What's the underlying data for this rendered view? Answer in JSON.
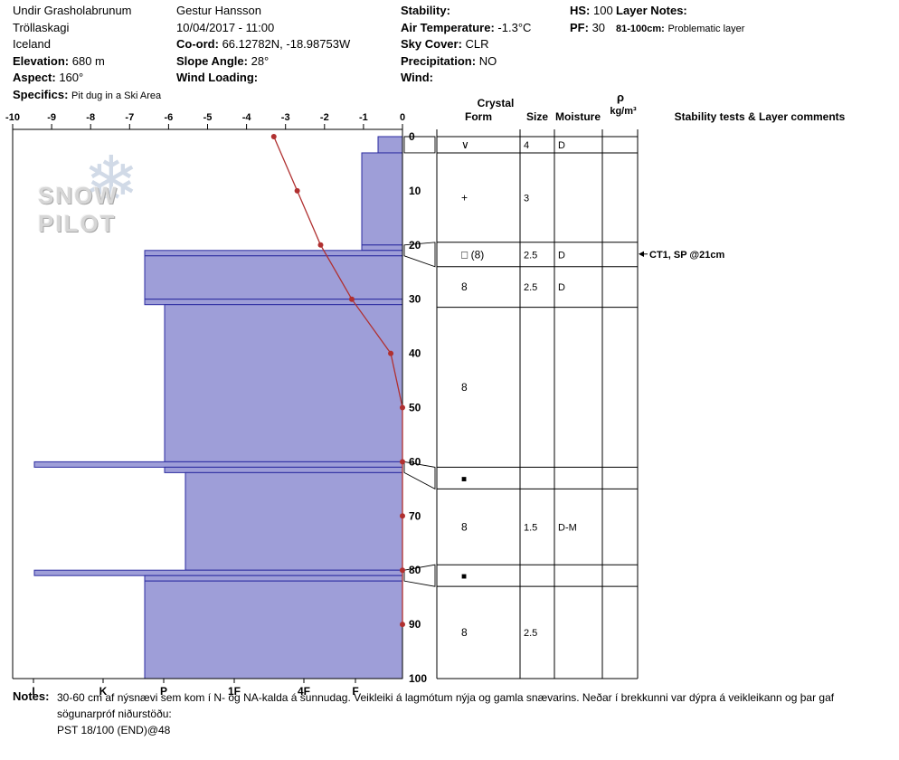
{
  "header": {
    "location": {
      "line1": "Undir Grasholabrunum",
      "line2": "Tröllaskagi",
      "line3": "Iceland"
    },
    "elevation": {
      "label": "Elevation:",
      "value": "680 m"
    },
    "aspect": {
      "label": "Aspect:",
      "value": "160°"
    },
    "specifics": {
      "label": "Specifics:",
      "value": "Pit dug in a Ski Area"
    },
    "observer": "Gestur Hansson",
    "datetime": "10/04/2017 - 11:00",
    "coord": {
      "label": "Co-ord:",
      "value": "66.12782N, -18.98753W"
    },
    "slope_angle": {
      "label": "Slope Angle:",
      "value": "28°"
    },
    "wind_loading": {
      "label": "Wind Loading:",
      "value": ""
    },
    "stability": {
      "label": "Stability:",
      "value": ""
    },
    "air_temperature": {
      "label": "Air Temperature:",
      "value": "-1.3°C"
    },
    "sky_cover": {
      "label": "Sky Cover:",
      "value": "CLR"
    },
    "precipitation": {
      "label": "Precipitation:",
      "value": "NO"
    },
    "wind": {
      "label": "Wind:",
      "value": ""
    },
    "hs": {
      "label": "HS:",
      "value": "100"
    },
    "pf": {
      "label": "PF:",
      "value": "30"
    },
    "layer_notes": {
      "label": "Layer Notes:",
      "range": "81-100cm:",
      "text": "Problematic layer"
    }
  },
  "logo": {
    "text": "SNOW PILOT"
  },
  "chart_data": {
    "type": "snow-pit-profile",
    "temperature_axis": {
      "min": -10,
      "max": 0,
      "ticks": [
        -10,
        -9,
        -8,
        -7,
        -6,
        -5,
        -4,
        -3,
        -2,
        -1,
        0
      ]
    },
    "depth_axis": {
      "min": 0,
      "max": 100,
      "ticks": [
        0,
        10,
        20,
        30,
        40,
        50,
        60,
        70,
        80,
        90,
        100
      ]
    },
    "hardness_axis": {
      "ticks": [
        "I",
        "K",
        "P",
        "1F",
        "4F",
        "F"
      ]
    },
    "temperature_profile": {
      "points": [
        {
          "depth_cm": 0,
          "temp_c": -3.3
        },
        {
          "depth_cm": 10,
          "temp_c": -2.7
        },
        {
          "depth_cm": 20,
          "temp_c": -2.1
        },
        {
          "depth_cm": 30,
          "temp_c": -1.3
        },
        {
          "depth_cm": 40,
          "temp_c": -0.3
        },
        {
          "depth_cm": 50,
          "temp_c": 0
        },
        {
          "depth_cm": 60,
          "temp_c": 0
        },
        {
          "depth_cm": 70,
          "temp_c": 0
        },
        {
          "depth_cm": 80,
          "temp_c": 0
        },
        {
          "depth_cm": 90,
          "temp_c": 0
        }
      ]
    },
    "hardness_layers": [
      {
        "top_cm": 0,
        "bottom_cm": 3,
        "hardness": "F-"
      },
      {
        "top_cm": 3,
        "bottom_cm": 20,
        "hardness": "F"
      },
      {
        "top_cm": 20,
        "bottom_cm": 21,
        "hardness": "F"
      },
      {
        "top_cm": 21,
        "bottom_cm": 22,
        "hardness": "P+"
      },
      {
        "top_cm": 22,
        "bottom_cm": 30,
        "hardness": "P+"
      },
      {
        "top_cm": 30,
        "bottom_cm": 31,
        "hardness": "P+"
      },
      {
        "top_cm": 31,
        "bottom_cm": 60,
        "hardness": "P"
      },
      {
        "top_cm": 60,
        "bottom_cm": 61,
        "hardness": "I"
      },
      {
        "top_cm": 61,
        "bottom_cm": 62,
        "hardness": "P"
      },
      {
        "top_cm": 62,
        "bottom_cm": 80,
        "hardness": "P-"
      },
      {
        "top_cm": 80,
        "bottom_cm": 81,
        "hardness": "I"
      },
      {
        "top_cm": 81,
        "bottom_cm": 82,
        "hardness": "P+"
      },
      {
        "top_cm": 82,
        "bottom_cm": 100,
        "hardness": "P+"
      }
    ],
    "grain_table": {
      "headers": {
        "crystal": "Crystal",
        "form": "Form",
        "size": "Size",
        "moisture": "Moisture",
        "density_symbol": "ρ",
        "density_unit": "kg/m³",
        "comments": "Stability tests & Layer comments"
      },
      "rows": [
        {
          "top_cm": 0,
          "bottom_cm": 3,
          "form": "∨",
          "size": "4",
          "moisture": "D"
        },
        {
          "top_cm": 3,
          "bottom_cm": 19.5,
          "form": "+",
          "size": "3",
          "moisture": ""
        },
        {
          "top_cm": 19.5,
          "bottom_cm": 24,
          "form": "□ (8)",
          "size": "2.5",
          "moisture": "D"
        },
        {
          "top_cm": 24,
          "bottom_cm": 31.5,
          "form": "8",
          "size": "2.5",
          "moisture": "D"
        },
        {
          "top_cm": 31.5,
          "bottom_cm": 61,
          "form": "8",
          "size": "",
          "moisture": ""
        },
        {
          "top_cm": 61,
          "bottom_cm": 65,
          "form": "■",
          "size": "",
          "moisture": ""
        },
        {
          "top_cm": 65,
          "bottom_cm": 79,
          "form": "8",
          "size": "1.5",
          "moisture": "D-M"
        },
        {
          "top_cm": 79,
          "bottom_cm": 83,
          "form": "■",
          "size": "",
          "moisture": ""
        },
        {
          "top_cm": 83,
          "bottom_cm": 100,
          "form": "8",
          "size": "2.5",
          "moisture": ""
        }
      ]
    },
    "annotations": [
      {
        "depth_cm": 21,
        "text": "CT1, SP @21cm"
      }
    ],
    "flags": [
      {
        "layer_top_cm": 0,
        "layer_bottom_cm": 3,
        "row_top_cm": 0,
        "row_bottom_cm": 3
      },
      {
        "layer_top_cm": 20,
        "layer_bottom_cm": 22,
        "row_top_cm": 19.5,
        "row_bottom_cm": 24
      },
      {
        "layer_top_cm": 60,
        "layer_bottom_cm": 62,
        "row_top_cm": 61,
        "row_bottom_cm": 65
      },
      {
        "layer_top_cm": 80,
        "layer_bottom_cm": 82,
        "row_top_cm": 79,
        "row_bottom_cm": 83
      }
    ],
    "colors": {
      "bar_fill": "#9e9ed8",
      "bar_stroke": "#2b2ba0",
      "temp_line": "#b03030"
    }
  },
  "notes": {
    "label": "Notes:",
    "lines": [
      "30-60 cm af nýsnævi sem kom í N- og NA-kalda á sunnudag. Veikleiki á lagmótum nýja og gamla snævarins. Neðar í brekkunni var dýpra á veikleikann og þar gaf",
      "sögunarpróf niðurstöðu:",
      "PST 18/100 (END)@48"
    ]
  }
}
